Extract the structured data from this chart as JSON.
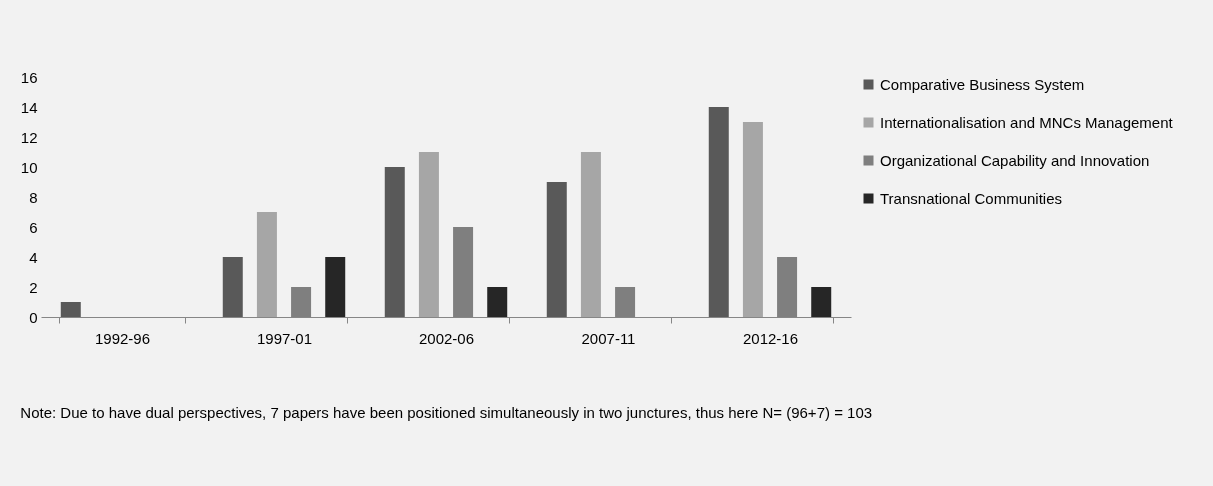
{
  "chart_data": {
    "type": "bar",
    "categories": [
      "1992-96",
      "1997-01",
      "2002-06",
      "2007-11",
      "2012-16"
    ],
    "series": [
      {
        "name": "Comparative Business System",
        "color": "#595959",
        "values": [
          1,
          4,
          10,
          9,
          14
        ]
      },
      {
        "name": "Internationalisation and MNCs Management",
        "color": "#a6a6a6",
        "values": [
          0,
          7,
          11,
          11,
          13
        ]
      },
      {
        "name": "Organizational Capability and Innovation",
        "color": "#7f7f7f",
        "values": [
          0,
          2,
          6,
          2,
          4
        ]
      },
      {
        "name": "Transnational Communities",
        "color": "#262626",
        "values": [
          0,
          4,
          2,
          0,
          2
        ]
      }
    ],
    "ylim": [
      0,
      16
    ],
    "yticks": [
      0,
      2,
      4,
      6,
      8,
      10,
      12,
      14,
      16
    ],
    "grid": false,
    "legend": "right",
    "annotations": [
      "Note: Due to have dual perspectives, 7 papers have been positioned simultaneously in two junctures, thus here N= (96+7) = 103"
    ]
  }
}
